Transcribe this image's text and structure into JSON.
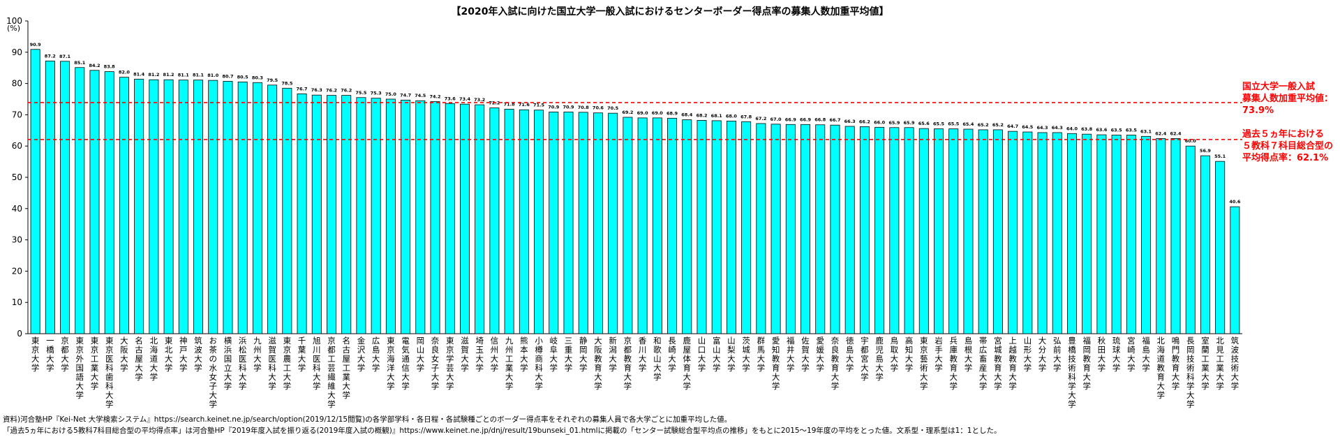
{
  "title": "【2020年入試に向けた国立大学一般入試におけるセンターボーダー得点率の募集人数加重平均値】",
  "unit": "(%)",
  "notes": [
    "資料)河合塾HP『Kei-Net 大学検索システム』https://search.keinet.ne.jp/search/option(2019/12/15閲覧)の各学部学科・各日程・各試験種ごとのボーダー得点率をそれぞれの募集人員で各大学ごとに加重平均した値。",
    "「過去5ヵ年における5教科7科目総合型の平均得点率」は河合塾HP『2019年度入試を振り返る(2019年度入試の概観)』https://www.keinet.ne.jp/dnj/result/19bunseki_01.htmlに掲載の「センター試験総合型平均点の推移」をもとに2015～19年度の平均をとった値。文系型・理系型は1：1とした。"
  ],
  "annotations": {
    "avg_label": "国立大学一般入試\n募集人数加重平均値：\n73.9%",
    "past_label": "過去５ヵ年における\n５教科７科目総合型の\n平均得点率：62.1%"
  },
  "colors": {
    "bar": "#00ffff",
    "bar_border": "#000000",
    "reference": "#ff0000"
  },
  "chart_data": {
    "type": "bar",
    "title": "【2020年入試に向けた国立大学一般入試におけるセンターボーダー得点率の募集人数加重平均値】",
    "ylabel": "(%)",
    "ylim": [
      0,
      100
    ],
    "yticks": [
      0,
      10,
      20,
      30,
      40,
      50,
      60,
      70,
      80,
      90,
      100
    ],
    "grid": false,
    "reference_lines": [
      {
        "label": "国立大学一般入試募集人数加重平均値：73.9%",
        "value": 73.9
      },
      {
        "label": "過去５ヵ年における５教科７科目総合型の平均得点率：62.1%",
        "value": 62.1
      }
    ],
    "categories": [
      "東京大学",
      "一橋大学",
      "京都大学",
      "東京外国語大学",
      "東京工業大学",
      "東京医科歯科大学",
      "大阪大学",
      "名古屋大学",
      "北海道大学",
      "東北大学",
      "神戸大学",
      "筑波大学",
      "お茶の水女子大学",
      "横浜国立大学",
      "浜松医科大学",
      "九州大学",
      "滋賀医科大学",
      "東京農工大学",
      "千葉大学",
      "旭川医科大学",
      "京都工芸繊維大学",
      "名古屋工業大学",
      "金沢大学",
      "広島大学",
      "東京海洋大学",
      "電気通信大学",
      "岡山大学",
      "奈良女子大学",
      "東京学芸大学",
      "滋賀大学",
      "埼玉大学",
      "信州大学",
      "九州工業大学",
      "熊本大学",
      "小樽商科大学",
      "岐阜大学",
      "三重大学",
      "静岡大学",
      "大阪教育大学",
      "新潟大学",
      "京都教育大学",
      "香川大学",
      "和歌山大学",
      "長崎大学",
      "鹿屋体育大学",
      "山口大学",
      "富山大学",
      "山梨大学",
      "茨城大学",
      "群馬大学",
      "愛知教育大学",
      "福井大学",
      "佐賀大学",
      "愛媛大学",
      "奈良教育大学",
      "徳島大学",
      "宇都宮大学",
      "鹿児島大学",
      "鳥取大学",
      "高知大学",
      "東京藝術大学",
      "岩手大学",
      "兵庫教育大学",
      "島根大学",
      "帯広畜産大学",
      "宮城教育大学",
      "上越教育大学",
      "山形大学",
      "大分大学",
      "弘前大学",
      "豊橋技術科学大学",
      "福岡教育大学",
      "秋田大学",
      "琉球大学",
      "宮崎大学",
      "福島大学",
      "北海道教育大学",
      "鳴門教育大学",
      "長岡技術科学大学",
      "室蘭工業大学",
      "北見工業大学",
      "筑波技術大学"
    ],
    "values": [
      90.9,
      87.2,
      87.1,
      85.1,
      84.2,
      83.8,
      82.0,
      81.4,
      81.2,
      81.2,
      81.1,
      81.1,
      81.0,
      80.7,
      80.5,
      80.3,
      79.5,
      78.5,
      76.7,
      76.3,
      76.2,
      76.2,
      75.5,
      75.3,
      75.0,
      74.7,
      74.5,
      74.2,
      73.6,
      73.4,
      73.2,
      72.2,
      71.8,
      71.6,
      71.5,
      70.9,
      70.9,
      70.8,
      70.6,
      70.5,
      69.2,
      69.0,
      69.0,
      68.9,
      68.4,
      68.2,
      68.1,
      68.0,
      67.8,
      67.2,
      67.0,
      66.9,
      66.9,
      66.8,
      66.7,
      66.3,
      66.2,
      66.0,
      65.9,
      65.9,
      65.6,
      65.5,
      65.5,
      65.4,
      65.2,
      65.2,
      64.7,
      64.5,
      64.3,
      64.3,
      64.0,
      63.8,
      63.6,
      63.5,
      63.5,
      63.1,
      62.4,
      62.4,
      60.0,
      56.9,
      55.1,
      40.6
    ]
  }
}
